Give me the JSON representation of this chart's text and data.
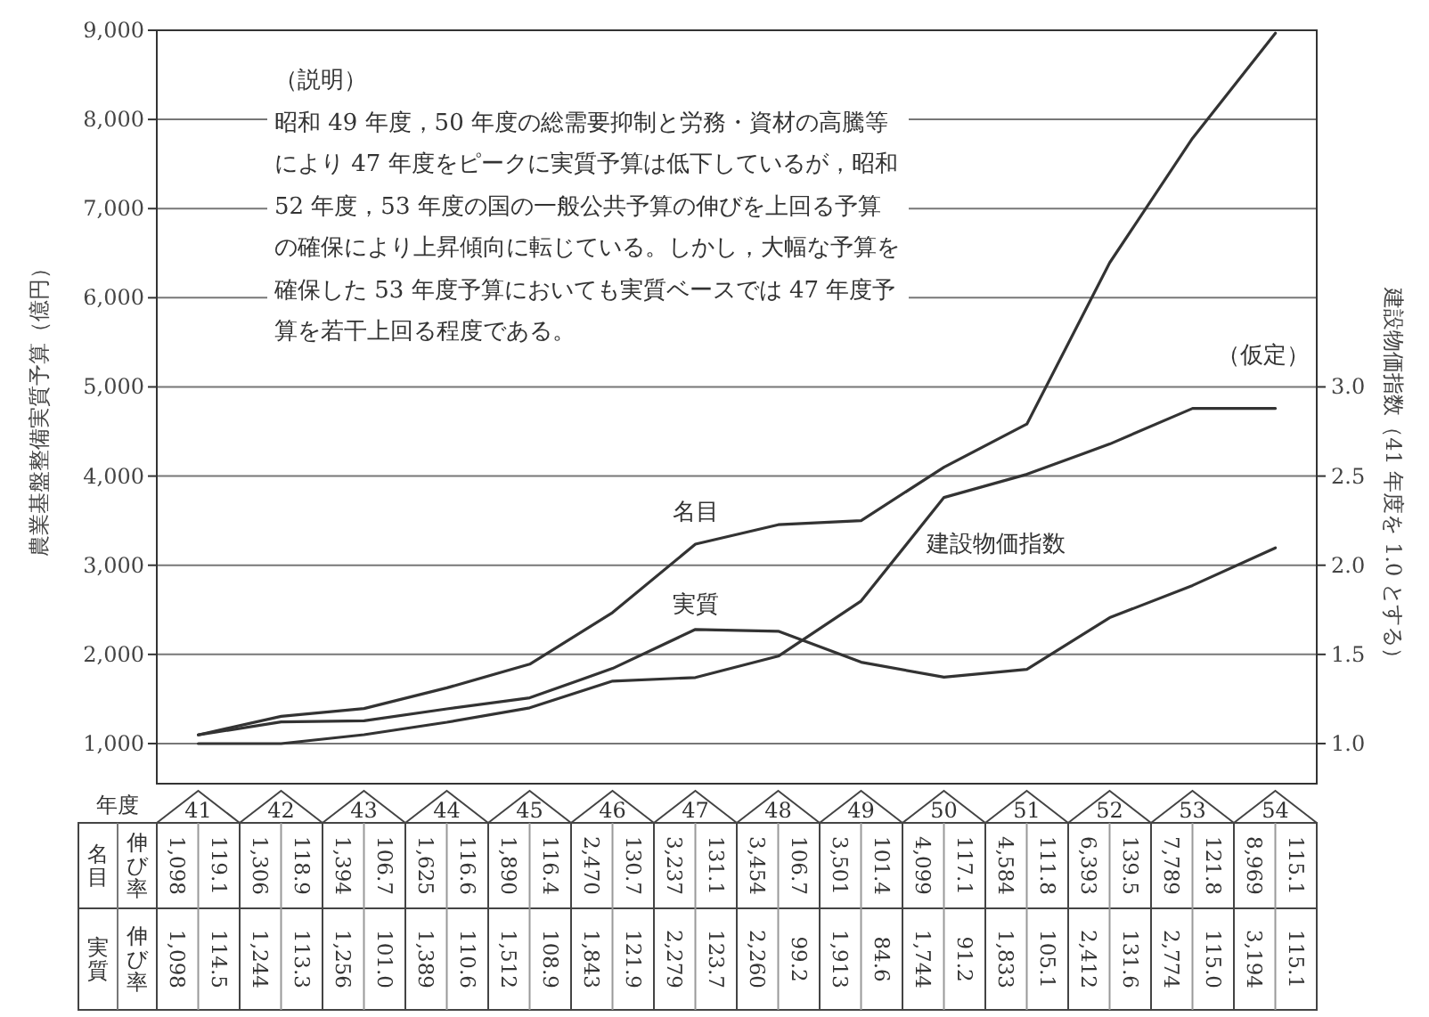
{
  "chart_data": {
    "type": "line",
    "xlabel": "年度",
    "ylabel": "農業基盤整備実質予算（億円）",
    "y2label": "建設物価指数（41 年度を 1.0 とする）",
    "categories": [
      "41",
      "42",
      "43",
      "44",
      "45",
      "46",
      "47",
      "48",
      "49",
      "50",
      "51",
      "52",
      "53",
      "54"
    ],
    "series": [
      {
        "name": "名目",
        "color": "#333333",
        "values": [
          1098,
          1306,
          1394,
          1625,
          1890,
          2470,
          3237,
          3454,
          3501,
          4099,
          4584,
          6393,
          7789,
          8969
        ],
        "value_labels": [
          "1,098",
          "1,306",
          "1,394",
          "1,625",
          "1,890",
          "2,470",
          "3,237",
          "3,454",
          "3,501",
          "4,099",
          "4,584",
          "6,393",
          "7,789",
          "8,969"
        ]
      },
      {
        "name": "実質",
        "color": "#333333",
        "values": [
          1098,
          1244,
          1256,
          1389,
          1512,
          1843,
          2279,
          2260,
          1913,
          1744,
          1833,
          2412,
          2774,
          3194
        ],
        "value_labels": [
          "1,098",
          "1,244",
          "1,256",
          "1,389",
          "1,512",
          "1,843",
          "2,279",
          "2,260",
          "1,913",
          "1,744",
          "1,833",
          "2,412",
          "2,774",
          "3,194"
        ]
      },
      {
        "name": "建設物価指数",
        "color": "#333333",
        "axis": "y2",
        "values": [
          1.0,
          1.0,
          1.05,
          1.12,
          1.2,
          1.35,
          1.37,
          1.49,
          1.8,
          2.38,
          2.51,
          2.68,
          2.88,
          2.88
        ]
      }
    ],
    "ylim": [
      550,
      9000
    ],
    "yticks": [
      {
        "value": 1000,
        "label": "1,000"
      },
      {
        "value": 2000,
        "label": "2,000"
      },
      {
        "value": 3000,
        "label": "3,000"
      },
      {
        "value": 4000,
        "label": "4,000"
      },
      {
        "value": 5000,
        "label": "5,000"
      },
      {
        "value": 6000,
        "label": "6,000"
      },
      {
        "value": 7000,
        "label": "7,000"
      },
      {
        "value": 8000,
        "label": "8,000"
      },
      {
        "value": 9000,
        "label": "9,000"
      }
    ],
    "y2lim": [
      0.775,
      5.0
    ],
    "y2ticks": [
      {
        "value": 1,
        "label": "1.0"
      },
      {
        "value": 1.5,
        "label": "1.5"
      },
      {
        "value": 2,
        "label": "2.0"
      },
      {
        "value": 2.5,
        "label": "2.5"
      },
      {
        "value": 3,
        "label": "3.0"
      }
    ],
    "grid": "y",
    "marker": "none",
    "line_style": "solid",
    "annotations": [
      "（説明）",
      "昭和 49 年度，50 年度の総需要抑制と労務・資材の高騰等により 47 年度をピークに実質予算は低下しているが，昭和 52 年度，53 年度の国の一般公共予算の伸びを上回る予算の確保により上昇傾向に転じている。しかし，大幅な予算を確保した 53 年度予算においても実質ベースでは 47 年度予算を若干上回る程度である。",
      "（仮定）",
      "名目",
      "伸び率",
      "実質",
      "伸び率",
      "119.1",
      "118.9",
      "106.7",
      "116.6",
      "116.4",
      "130.7",
      "131.1",
      "106.7",
      "101.4",
      "117.1",
      "111.8",
      "139.5",
      "121.8",
      "115.1",
      "114.5",
      "113.3",
      "101.0",
      "110.6",
      "108.9",
      "121.9",
      "123.7",
      "99.2",
      "84.6",
      "91.2",
      "105.1",
      "131.6",
      "115.0",
      "115.1"
    ]
  }
}
